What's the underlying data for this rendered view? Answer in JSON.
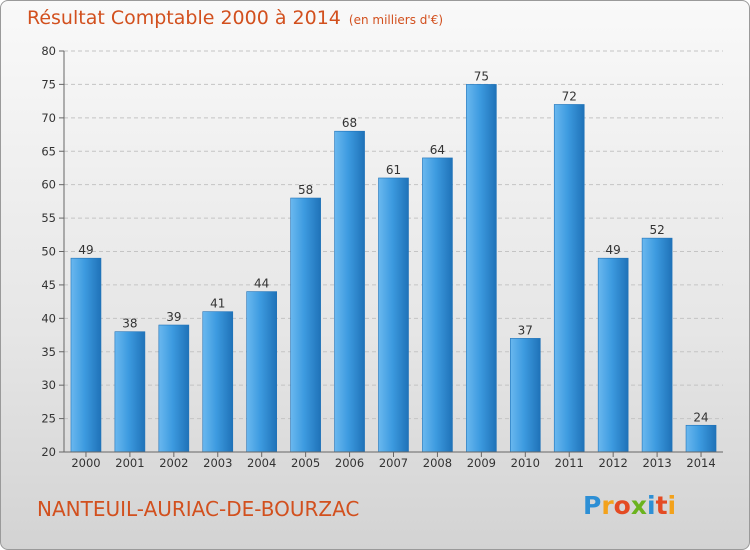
{
  "title": "Résultat Comptable 2000 à 2014",
  "subtitle": "(en milliers d'€)",
  "commune": "NANTEUIL-AURIAC-DE-BOURZAC",
  "logo": "Proxiti",
  "logo_colors": [
    "#2d8fd5",
    "#f3a21b",
    "#e44b23",
    "#6bb31e",
    "#2d8fd5",
    "#e44b23",
    "#f3a21b"
  ],
  "colors": {
    "bar": "#3d9be0",
    "bar_light": "#6ab8ef",
    "bar_dark": "#1f72b8",
    "title": "#d2501e"
  },
  "chart_data": {
    "type": "bar",
    "categories": [
      "2000",
      "2001",
      "2002",
      "2003",
      "2004",
      "2005",
      "2006",
      "2007",
      "2008",
      "2009",
      "2010",
      "2011",
      "2012",
      "2013",
      "2014"
    ],
    "values": [
      49,
      38,
      39,
      41,
      44,
      58,
      68,
      61,
      64,
      75,
      37,
      72,
      49,
      52,
      24
    ],
    "ylim": [
      20,
      80
    ],
    "yticks": [
      20,
      25,
      30,
      35,
      40,
      45,
      50,
      55,
      60,
      65,
      70,
      75,
      80
    ],
    "grid": true
  }
}
